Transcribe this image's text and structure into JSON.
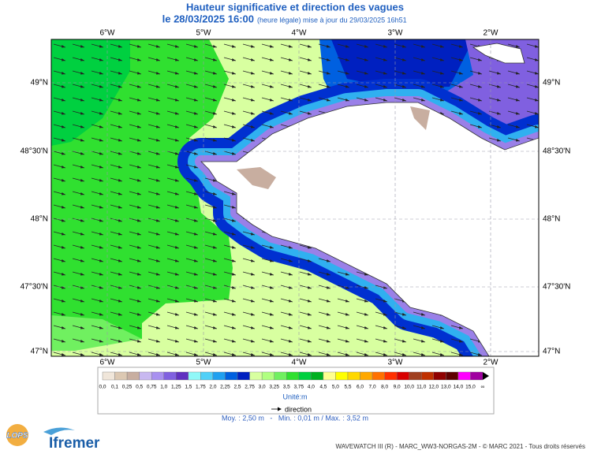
{
  "header": {
    "title": "Hauteur significative et direction des vagues",
    "date": "le 28/03/2025 16:00",
    "update": "(heure légale) mise à jour du 29/03/2025 16h51"
  },
  "map": {
    "lon_labels": [
      "6°W",
      "5°W",
      "4°W",
      "3°W",
      "2°W"
    ],
    "lat_labels": [
      "49°N",
      "48°30'N",
      "48°N",
      "47°30'N",
      "47°N"
    ]
  },
  "legend": {
    "labels": [
      "0,0",
      "0,1",
      "0,25",
      "0,5",
      "0,75",
      "1,0",
      "1,25",
      "1,5",
      "1,75",
      "2,0",
      "2,25",
      "2,5",
      "2,75",
      "3,0",
      "3,25",
      "3,5",
      "3,75",
      "4,0",
      "4,5",
      "5,0",
      "5,5",
      "6,0",
      "7,0",
      "8,0",
      "9,0",
      "10,0",
      "11,0",
      "12,0",
      "13,0",
      "14,0",
      "15,0",
      "∞"
    ],
    "colors": [
      "#f0e6da",
      "#dcc8b2",
      "#c8aea0",
      "#c8b8f0",
      "#a890f0",
      "#8060e0",
      "#6030c0",
      "#90f8f8",
      "#50d0f8",
      "#20a0f0",
      "#0060e0",
      "#0020c0",
      "#d8ffa0",
      "#b0ff80",
      "#70f060",
      "#30e030",
      "#00d040",
      "#00b020",
      "#ffff90",
      "#ffff00",
      "#ffd800",
      "#ffa800",
      "#ff7000",
      "#ff3000",
      "#d80000",
      "#a04020",
      "#c03000",
      "#900000",
      "#600000",
      "#ff00ff",
      "#a000a0"
    ],
    "unit": "Unité:m",
    "direction": "direction",
    "stats": "Moy. : 2,50 m   -   Min. : 0,01 m / Max. : 3,52 m"
  },
  "footer": {
    "credit": "WAVEWATCH III (R) - MARC_WW3-NORGAS-2M - © MARC 2021 - Tous droits réservés",
    "logo_left": "LOPS",
    "logo_right": "Ifremer"
  }
}
